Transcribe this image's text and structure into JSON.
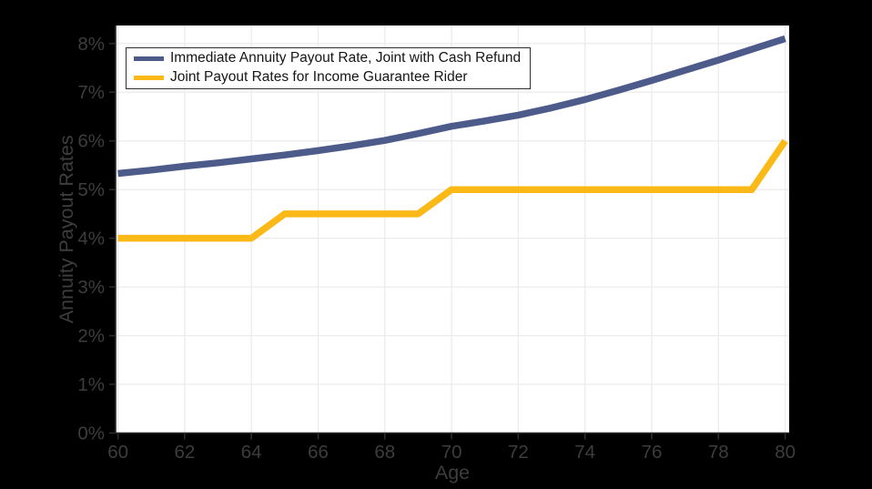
{
  "chart_data": {
    "type": "line",
    "title": "",
    "xlabel": "Age",
    "ylabel": "Annuity Payout Rates",
    "x": [
      60,
      61,
      62,
      63,
      64,
      65,
      66,
      67,
      68,
      69,
      70,
      71,
      72,
      73,
      74,
      75,
      76,
      77,
      78,
      79,
      80
    ],
    "series": [
      {
        "name": "Immediate Annuity Payout Rate, Joint with Cash Refund",
        "color": "#4D5B8A",
        "values": [
          5.33,
          5.4,
          5.48,
          5.55,
          5.63,
          5.71,
          5.8,
          5.9,
          6.01,
          6.15,
          6.3,
          6.41,
          6.53,
          6.68,
          6.85,
          7.04,
          7.24,
          7.45,
          7.66,
          7.88,
          8.1
        ]
      },
      {
        "name": "Joint Payout Rates for Income Guarantee Rider",
        "color": "#FBB917",
        "values": [
          4.0,
          4.0,
          4.0,
          4.0,
          4.0,
          4.5,
          4.5,
          4.5,
          4.5,
          4.5,
          5.0,
          5.0,
          5.0,
          5.0,
          5.0,
          5.0,
          5.0,
          5.0,
          5.0,
          5.0,
          6.0
        ]
      }
    ],
    "xlim": [
      59.93,
      80.12
    ],
    "ylim": [
      0,
      8.37
    ],
    "xticks": [
      60,
      62,
      64,
      66,
      68,
      70,
      72,
      74,
      76,
      78,
      80
    ],
    "xtick_labels": [
      "60",
      "62",
      "64",
      "66",
      "68",
      "70",
      "72",
      "74",
      "76",
      "78",
      "80"
    ],
    "yticks": [
      0,
      1,
      2,
      3,
      4,
      5,
      6,
      7,
      8
    ],
    "ytick_labels": [
      "0%",
      "1%",
      "2%",
      "3%",
      "4%",
      "5%",
      "6%",
      "7%",
      "8%"
    ],
    "grid": true,
    "legend_position": "upper-left",
    "line_width": 7.5,
    "colors": {
      "background": "#000000",
      "plot_background": "#FFFFFF",
      "grid": "#ECECEC",
      "axis": "#2B2B2B",
      "tick_label": "#3D3D3D",
      "legend_text": "#161616",
      "legend_border": "#2E2E2E",
      "legend_background": "#FFFFFF"
    }
  }
}
